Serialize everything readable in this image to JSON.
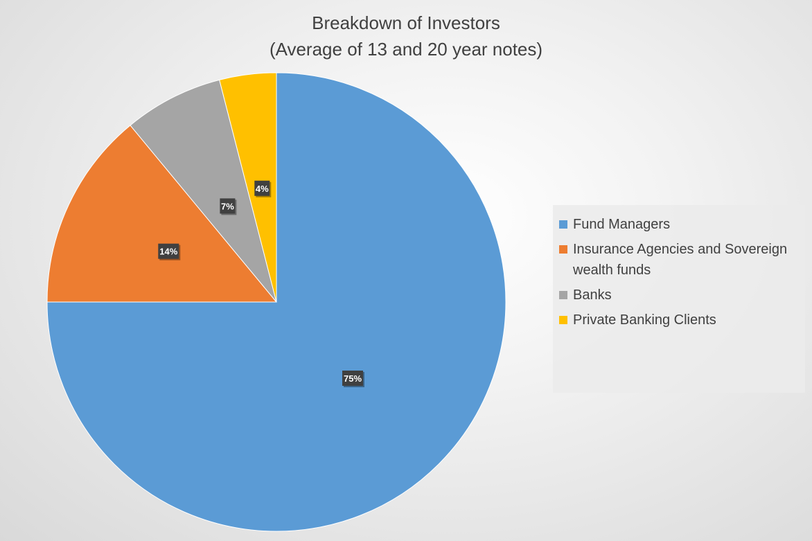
{
  "chart_data": {
    "type": "pie",
    "title": "Breakdown of Investors",
    "subtitle": "(Average of 13 and 20 year notes)",
    "categories": [
      "Fund Managers",
      "Insurance Agencies and Sovereign wealth funds",
      "Banks",
      "Private Banking Clients"
    ],
    "values": [
      75,
      14,
      7,
      4
    ],
    "data_labels": [
      "75%",
      "14%",
      "7%",
      "4%"
    ],
    "colors": [
      "#5B9BD5",
      "#ED7D31",
      "#A5A5A5",
      "#FFC000"
    ],
    "start_angle_deg": 0,
    "direction": "clockwise",
    "legend": "right"
  }
}
